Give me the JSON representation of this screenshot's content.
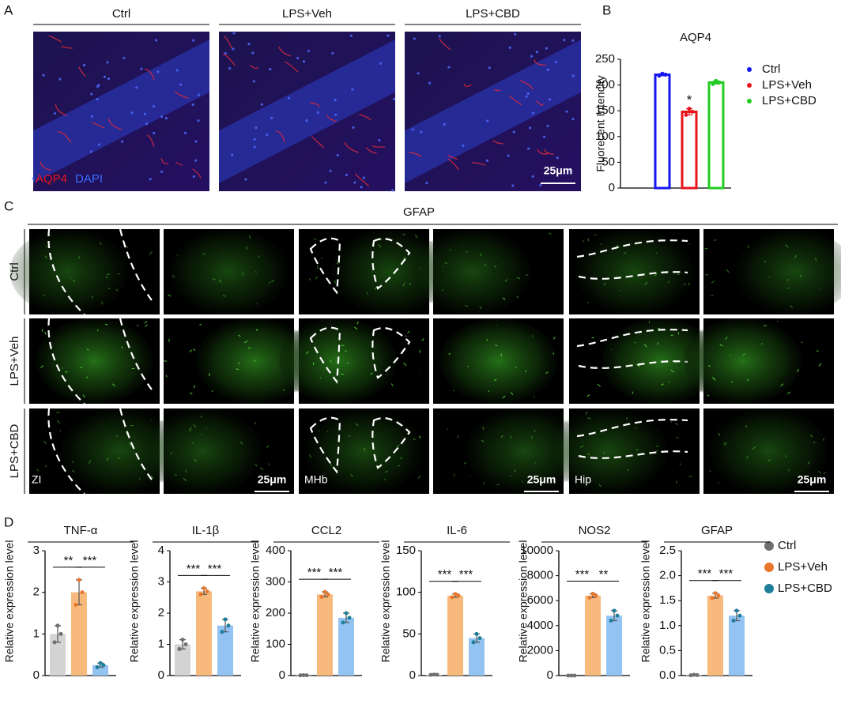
{
  "panel_labels": [
    "A",
    "B",
    "C",
    "D"
  ],
  "panel_a": {
    "columns": [
      "Ctrl",
      "LPS+Veh",
      "LPS+CBD"
    ],
    "stain_labels": [
      "AQP4",
      "DAPI"
    ],
    "scale_bar": "25μm"
  },
  "panel_c": {
    "title": "GFAP",
    "rows": [
      "Ctrl",
      "LPS+Veh",
      "LPS+CBD"
    ],
    "regions": [
      "ZI",
      "MHb",
      "Hip"
    ],
    "scale_bar": "25μm"
  },
  "legend_b": [
    {
      "name": "Ctrl",
      "color": "#1515f0"
    },
    {
      "name": "LPS+Veh",
      "color": "#e8141b"
    },
    {
      "name": "LPS+CBD",
      "color": "#22cc22"
    }
  ],
  "legend_d": [
    {
      "name": "Ctrl",
      "color": "#6f6f6f"
    },
    {
      "name": "LPS+Veh",
      "color": "#e8762c"
    },
    {
      "name": "LPS+CBD",
      "color": "#1f7f9a"
    }
  ],
  "chart_data": [
    {
      "type": "bar",
      "title": "AQP4",
      "y_label": "Fluorecent Intencity",
      "values": [
        220,
        148,
        205
      ],
      "errors": [
        2,
        6,
        3
      ],
      "colors": [
        "#1515f0",
        "#e8141b",
        "#22cc22"
      ],
      "filled": false,
      "ylim": [
        0,
        250
      ],
      "yticks": [
        0,
        50,
        100,
        150,
        200,
        250
      ],
      "annotations": [
        "*"
      ]
    },
    {
      "type": "bar",
      "title": "TNF-α",
      "y_label": "Relative expression level",
      "values": [
        1.0,
        2.0,
        0.25
      ],
      "errors": [
        0.2,
        0.3,
        0.05
      ],
      "colors": [
        "#d3d3d3",
        "#f8b97c",
        "#93c3f2"
      ],
      "point_colors": [
        "#6f6f6f",
        "#e8762c",
        "#1f7f9a"
      ],
      "filled": true,
      "ylim": [
        0,
        3
      ],
      "yticks": [
        0,
        1,
        2,
        3
      ],
      "annotations": [
        "**",
        "***"
      ]
    },
    {
      "type": "bar",
      "title": "IL-1β",
      "y_label": "Relative expression level",
      "values": [
        1.0,
        2.7,
        1.6
      ],
      "errors": [
        0.15,
        0.1,
        0.2
      ],
      "colors": [
        "#d3d3d3",
        "#f8b97c",
        "#93c3f2"
      ],
      "point_colors": [
        "#6f6f6f",
        "#e8762c",
        "#1f7f9a"
      ],
      "filled": true,
      "ylim": [
        0,
        4
      ],
      "yticks": [
        0,
        1,
        2,
        3,
        4
      ],
      "annotations": [
        "***",
        "***"
      ]
    },
    {
      "type": "bar",
      "title": "CCL2",
      "y_label": "Relative expression level",
      "values": [
        1,
        260,
        185
      ],
      "errors": [
        0.2,
        8,
        15
      ],
      "colors": [
        "#d3d3d3",
        "#f8b97c",
        "#93c3f2"
      ],
      "point_colors": [
        "#6f6f6f",
        "#e8762c",
        "#1f7f9a"
      ],
      "filled": true,
      "ylim": [
        0,
        400
      ],
      "yticks": [
        0,
        100,
        200,
        300,
        400
      ],
      "annotations": [
        "***",
        "***"
      ]
    },
    {
      "type": "bar",
      "title": "IL-6",
      "y_label": "Relative expression level",
      "values": [
        1,
        96,
        45
      ],
      "errors": [
        0.2,
        2,
        5
      ],
      "colors": [
        "#d3d3d3",
        "#f8b97c",
        "#93c3f2"
      ],
      "point_colors": [
        "#6f6f6f",
        "#e8762c",
        "#1f7f9a"
      ],
      "filled": true,
      "ylim": [
        0,
        150
      ],
      "yticks": [
        0,
        50,
        100,
        150
      ],
      "annotations": [
        "***",
        "***"
      ]
    },
    {
      "type": "bar",
      "title": "NOS2",
      "y_label": "Relative expression level",
      "values": [
        1,
        6400,
        4800
      ],
      "errors": [
        0.2,
        150,
        400
      ],
      "colors": [
        "#d3d3d3",
        "#f8b97c",
        "#93c3f2"
      ],
      "point_colors": [
        "#6f6f6f",
        "#e8762c",
        "#1f7f9a"
      ],
      "filled": true,
      "ylim": [
        0,
        10000
      ],
      "yticks": [
        0,
        2000,
        4000,
        6000,
        8000,
        10000
      ],
      "annotations": [
        "***",
        "**"
      ]
    },
    {
      "type": "bar",
      "title": "GFAP",
      "y_label": "Relative expression level",
      "values": [
        0.01,
        1.6,
        1.2
      ],
      "errors": [
        0.005,
        0.05,
        0.1
      ],
      "colors": [
        "#d3d3d3",
        "#f8b97c",
        "#93c3f2"
      ],
      "point_colors": [
        "#6f6f6f",
        "#e8762c",
        "#1f7f9a"
      ],
      "filled": true,
      "ylim": [
        0,
        2.5
      ],
      "yticks": [
        {
          "value": 0,
          "label": "0.0"
        },
        0.5,
        {
          "value": 1,
          "label": "1.0"
        },
        1.5,
        {
          "value": 2,
          "label": "2.0"
        },
        2.5
      ],
      "annotations": [
        "***",
        "***"
      ]
    }
  ]
}
